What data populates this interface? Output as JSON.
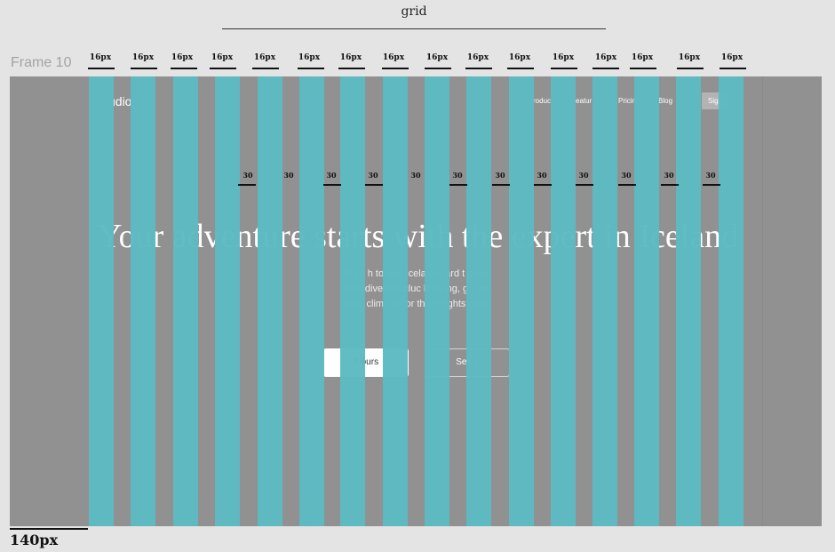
{
  "title": "grid",
  "frame_label": "Frame 10",
  "margin_label": "140px",
  "gutter_label": "16px",
  "column_width_label": "30",
  "mockup": {
    "logo": "udio",
    "nav": [
      "roduc",
      "eatur",
      "Pricin",
      "Blog"
    ],
    "signup": "Sign",
    "hero_title": "Your adventure starts with the expert in Iceland",
    "subtitle_lines": [
      "h so   h to   and   Icela   car   ard   t   pose",
      "vity.   dive   lect   cluc   king   ing, g   r wa",
      "nour   clim   hun   or th   rthe   ghts   more"
    ],
    "primary_button": "T   ours",
    "secondary_button": "See   s"
  },
  "colors": {
    "background": "#e4e4e4",
    "frame": "#919191",
    "column": "#5cbac2",
    "annotation": "#111111"
  }
}
